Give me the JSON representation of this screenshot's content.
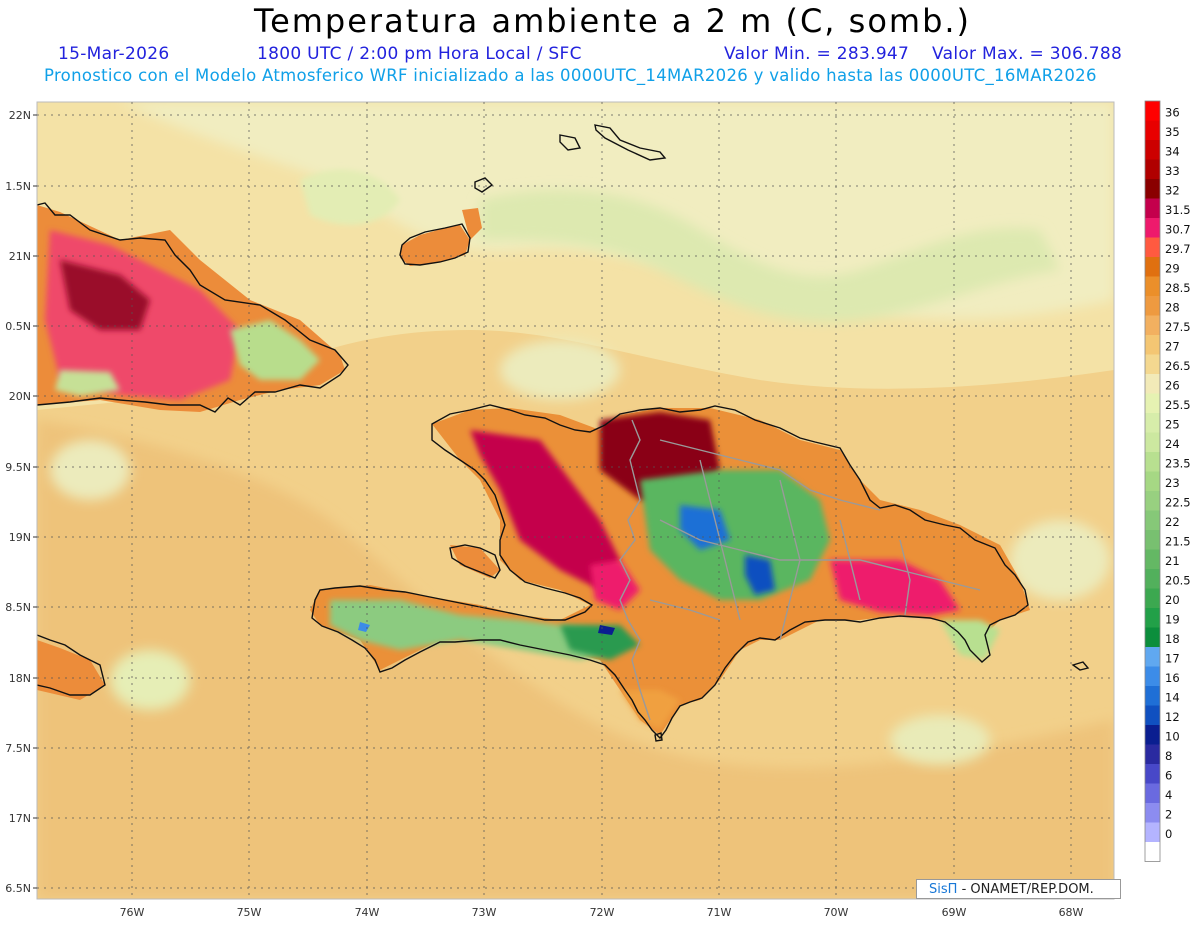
{
  "title": "Temperatura ambiente a 2 m (C, somb.)",
  "subtitle": {
    "date": "15-Mar-2026",
    "time": "1800 UTC / 2:00 pm Hora Local / SFC",
    "vmin": "Valor Min. = 283.947",
    "vmax": "Valor Max. = 306.788",
    "model": "Pronostico con el Modelo Atmosferico WRF inicializado a las 0000UTC_14MAR2026 y valido hasta las  0000UTC_16MAR2026"
  },
  "axes": {
    "lat_labels": [
      "22N",
      "1.5N",
      "21N",
      "0.5N",
      "20N",
      "9.5N",
      "19N",
      "8.5N",
      "18N",
      "7.5N",
      "17N",
      "6.5N"
    ],
    "lon_labels": [
      "76W",
      "75W",
      "74W",
      "73W",
      "72W",
      "71W",
      "70W",
      "69W",
      "68W"
    ]
  },
  "colorbar": {
    "labels": [
      "36",
      "35",
      "34",
      "33",
      "32",
      "31.5",
      "30.7",
      "29.7",
      "29",
      "28.5",
      "28",
      "27.5",
      "27",
      "26.5",
      "26",
      "25.5",
      "25",
      "24",
      "23.5",
      "23",
      "22.5",
      "22",
      "21.5",
      "21",
      "20.5",
      "20",
      "19",
      "18",
      "17",
      "16",
      "14",
      "12",
      "10",
      "8",
      "6",
      "4",
      "2",
      "0"
    ],
    "colors": [
      "#ff0000",
      "#e80000",
      "#cc0000",
      "#b00000",
      "#8a0000",
      "#c4004c",
      "#ee1a6c",
      "#ff5a40",
      "#e07010",
      "#eb8f2a",
      "#ee9a40",
      "#f2b060",
      "#f4c673",
      "#f4d890",
      "#f2eab8",
      "#e6f2b2",
      "#d7edaa",
      "#cce8a0",
      "#b8e090",
      "#a6d884",
      "#98d080",
      "#86c878",
      "#78c070",
      "#64b864",
      "#52b05c",
      "#3ca850",
      "#22a048",
      "#0c8e3c",
      "#60a8f0",
      "#3c8ce8",
      "#1f6fd6",
      "#1050c0",
      "#0a1e90",
      "#2a2aa0",
      "#4848c8",
      "#6a6ae0",
      "#8c8cf0",
      "#b4b4ff",
      "#ffffff"
    ]
  },
  "credit": {
    "sis": "SisΠ",
    "org": "- ONAMET/REP.DOM."
  }
}
